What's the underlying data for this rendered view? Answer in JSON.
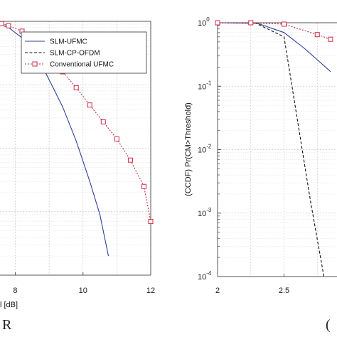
{
  "chart_data": [
    {
      "type": "line",
      "x_visible_range": [
        6.5,
        12
      ],
      "y_scale": "log",
      "ylim": [
        0.0001,
        1
      ],
      "grid": true,
      "xticks": [
        "8",
        "10",
        "12"
      ],
      "xlabel_visible_fragment": "l [dB]",
      "caption_fragment": "R",
      "legend": {
        "placement": "top-right",
        "entries": [
          "SLM-UFMC",
          "SLM-CP-OFDM",
          "Conventional UFMC"
        ]
      },
      "series": [
        {
          "name": "SLM-UFMC",
          "color": "#2f3f9a",
          "style": "solid",
          "points": [
            [
              6.9,
              1.0
            ],
            [
              7.3,
              0.98
            ],
            [
              7.8,
              0.8
            ],
            [
              8.3,
              0.5
            ],
            [
              8.7,
              0.25
            ],
            [
              9.0,
              0.12
            ],
            [
              9.4,
              0.045
            ],
            [
              9.8,
              0.013
            ],
            [
              10.2,
              0.003
            ],
            [
              10.5,
              0.0009
            ],
            [
              10.75,
              0.0002
            ]
          ]
        },
        {
          "name": "Conventional UFMC",
          "color": "#cc2b44",
          "style": "dotted",
          "marker": "square",
          "points": [
            [
              6.6,
              1.0
            ],
            [
              7.0,
              1.0
            ],
            [
              7.2,
              0.97
            ],
            [
              7.6,
              0.92
            ],
            [
              7.8,
              0.85
            ],
            [
              8.2,
              0.7
            ],
            [
              8.6,
              0.45
            ],
            [
              9.0,
              0.28
            ],
            [
              9.4,
              0.16
            ],
            [
              9.8,
              0.09
            ],
            [
              10.2,
              0.048
            ],
            [
              10.6,
              0.026
            ],
            [
              11.0,
              0.014
            ],
            [
              11.4,
              0.0065
            ],
            [
              11.8,
              0.0025
            ],
            [
              12.0,
              0.0007
            ]
          ]
        }
      ]
    },
    {
      "type": "line",
      "x_visible_range": [
        2,
        2.85
      ],
      "y_scale": "log",
      "ylim": [
        0.0001,
        1
      ],
      "grid": true,
      "xticks": [
        "2",
        "2.5"
      ],
      "yticks": [
        "10^0",
        "10^-1",
        "10^-2",
        "10^-3",
        "10^-4"
      ],
      "ylabel": "(CCDF) Pr(CM>Threshold)",
      "caption_fragment": "(",
      "series": [
        {
          "name": "SLM-UFMC",
          "color": "#2f3f9a",
          "style": "solid",
          "points": [
            [
              2.0,
              1.0
            ],
            [
              2.3,
              0.98
            ],
            [
              2.5,
              0.7
            ],
            [
              2.65,
              0.4
            ],
            [
              2.85,
              0.17
            ]
          ]
        },
        {
          "name": "SLM-CP-OFDM",
          "color": "#111111",
          "style": "dashed",
          "points": [
            [
              2.0,
              1.0
            ],
            [
              2.28,
              1.0
            ],
            [
              2.5,
              0.6
            ],
            [
              2.6,
              0.03
            ],
            [
              2.7,
              0.0015
            ],
            [
              2.8,
              0.0001
            ]
          ]
        },
        {
          "name": "Conventional UFMC",
          "color": "#cc2b44",
          "style": "dotted",
          "marker": "square",
          "points": [
            [
              2.0,
              1.0
            ],
            [
              2.25,
              1.0
            ],
            [
              2.5,
              0.95
            ],
            [
              2.75,
              0.65
            ],
            [
              2.85,
              0.55
            ]
          ]
        }
      ]
    }
  ]
}
